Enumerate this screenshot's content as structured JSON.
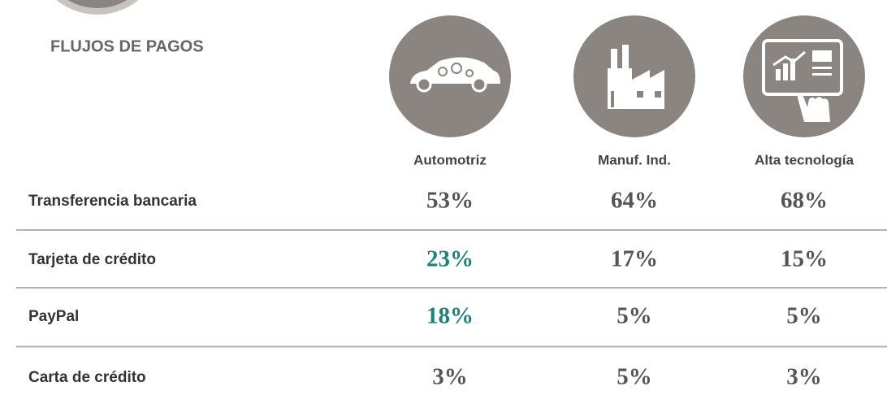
{
  "header": {
    "title": "FLUJOS DE PAGOS"
  },
  "table": {
    "columns": [
      "Automotriz",
      "Manuf. Ind.",
      "Alta tecnología"
    ],
    "rows": [
      {
        "label": "Transferencia bancaria",
        "values": [
          "53%",
          "64%",
          "68%"
        ]
      },
      {
        "label": "Tarjeta de crédito",
        "values": [
          "23%",
          "17%",
          "15%"
        ]
      },
      {
        "label": "PayPal",
        "values": [
          "18%",
          "5%",
          "5%"
        ]
      },
      {
        "label": "Carta de crédito",
        "values": [
          "3%",
          "5%",
          "3%"
        ]
      }
    ],
    "highlight": {
      "color": "#1b8379",
      "cells": [
        [
          1,
          0
        ],
        [
          2,
          0
        ]
      ]
    }
  }
}
